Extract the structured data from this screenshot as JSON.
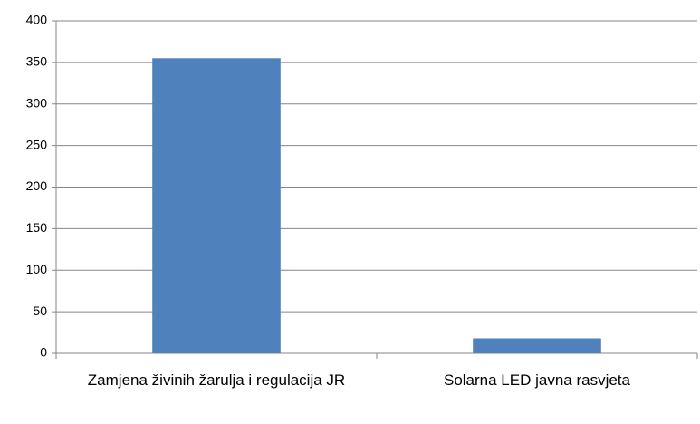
{
  "chart_data": {
    "type": "bar",
    "categories": [
      "Zamjena živinih žarulja i regulacija JR",
      "Solarna LED javna rasvjeta"
    ],
    "values": [
      355,
      18
    ],
    "color": "#4f81bd",
    "ylim": [
      0,
      400
    ],
    "yticks": [
      0,
      50,
      100,
      150,
      200,
      250,
      300,
      350,
      400
    ],
    "grid": true
  }
}
